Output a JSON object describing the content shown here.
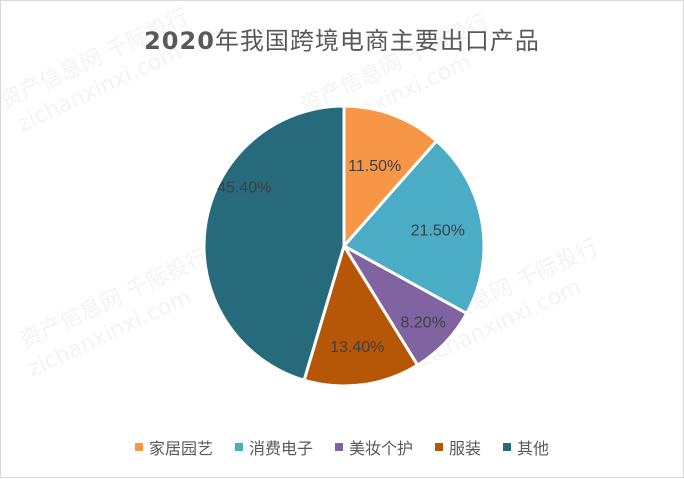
{
  "chart_data": {
    "type": "pie",
    "title": "2020年我国跨境电商主要出口产品",
    "categories": [
      "家居园艺",
      "消费电子",
      "美妆个护",
      "服装",
      "其他"
    ],
    "values": [
      11.5,
      21.5,
      8.2,
      13.4,
      45.4
    ],
    "labels": [
      "11.50%",
      "21.50%",
      "8.20%",
      "13.40%",
      "45.40%"
    ],
    "colors": [
      "#f79646",
      "#4bacc6",
      "#8064a2",
      "#b65708",
      "#276a7c"
    ],
    "legend_position": "bottom",
    "start_angle": "12 o'clock, clockwise"
  },
  "title_prefix": "2020",
  "title_suffix": "年我国跨境电商主要出口产品",
  "legend": [
    {
      "label": "家居园艺",
      "color": "#f79646"
    },
    {
      "label": "消费电子",
      "color": "#4bacc6"
    },
    {
      "label": "美妆个护",
      "color": "#8064a2"
    },
    {
      "label": "服装",
      "color": "#b65708"
    },
    {
      "label": "其他",
      "color": "#276a7c"
    }
  ],
  "watermark": [
    "资产信息网 千际投行",
    "zichanxinxi.com"
  ]
}
